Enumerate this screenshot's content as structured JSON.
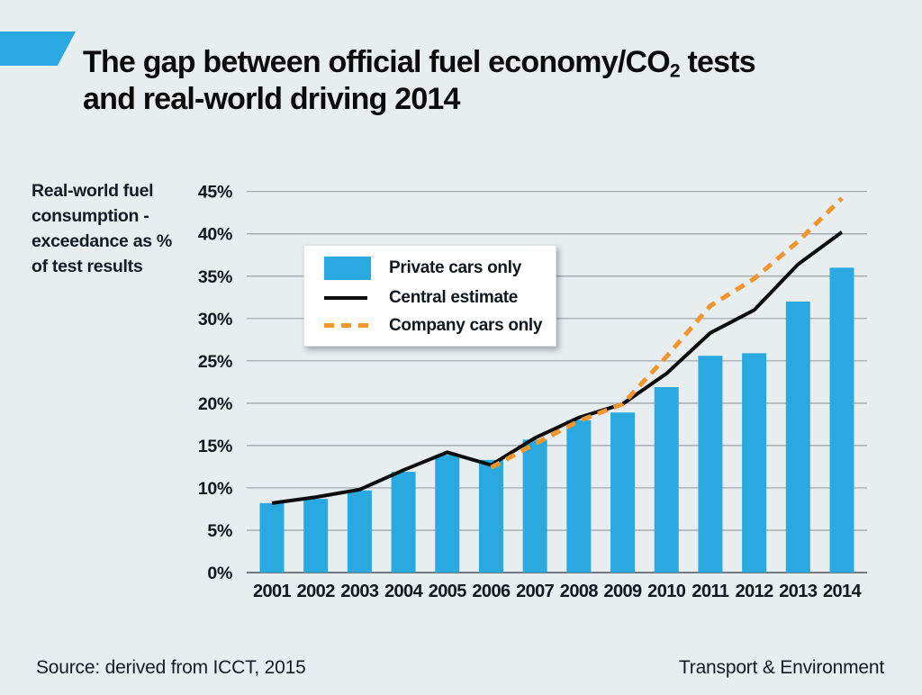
{
  "header": {
    "title": {
      "pre": "The gap between official fuel economy/CO",
      "sub": "2",
      "post": " tests",
      "line2": "and real-world driving 2014"
    }
  },
  "y_axis_label_lines": [
    "Real-world fuel",
    "consumption -",
    "exceedance as %",
    "of test results"
  ],
  "legend": {
    "items": [
      {
        "label": "Private cars only",
        "swatch": "blue-bar"
      },
      {
        "label": "Central estimate",
        "swatch": "black-line"
      },
      {
        "label": "Company cars only",
        "swatch": "orange-dashed-line"
      }
    ]
  },
  "footer": {
    "source": "Source: derived from ICCT, 2015",
    "brand": "Transport & Environment"
  },
  "colors": {
    "background": "#e8edf0",
    "bar_blue": "#29a9e0",
    "line_black": "#0d0d0d",
    "line_orange": "#f0962c",
    "grid": "#9aa1a7",
    "axis": "#737a7f",
    "text": "#101820"
  },
  "chart_data": {
    "type": "bar",
    "title": "The gap between official fuel economy/CO2 tests and real-world driving 2014",
    "xlabel": "",
    "ylabel": "Real-world fuel consumption - exceedance as % of test results",
    "ylim": [
      0,
      45
    ],
    "ytick_step": 5,
    "ytick_suffix": "%",
    "grid": true,
    "legend_position": "upper-left-inside",
    "categories": [
      "2001",
      "2002",
      "2003",
      "2004",
      "2005",
      "2006",
      "2007",
      "2008",
      "2009",
      "2010",
      "2011",
      "2012",
      "2013",
      "2014"
    ],
    "series": [
      {
        "name": "Private cars only",
        "type": "bar",
        "color": "#29a9e0",
        "values": [
          8.2,
          8.7,
          9.7,
          11.9,
          13.9,
          13.3,
          15.7,
          18.0,
          18.9,
          21.9,
          25.6,
          25.9,
          32.0,
          36.0
        ]
      },
      {
        "name": "Central estimate",
        "type": "line",
        "color": "#0d0d0d",
        "values": [
          8.2,
          8.9,
          9.8,
          12.1,
          14.2,
          12.7,
          15.9,
          18.3,
          19.9,
          23.5,
          28.3,
          31.0,
          36.4,
          40.2
        ]
      },
      {
        "name": "Company cars only",
        "type": "dashed-line",
        "color": "#f0962c",
        "values": [
          null,
          null,
          null,
          null,
          null,
          12.4,
          15.2,
          17.9,
          19.9,
          25.5,
          31.5,
          34.7,
          39.1,
          44.2
        ]
      }
    ]
  }
}
